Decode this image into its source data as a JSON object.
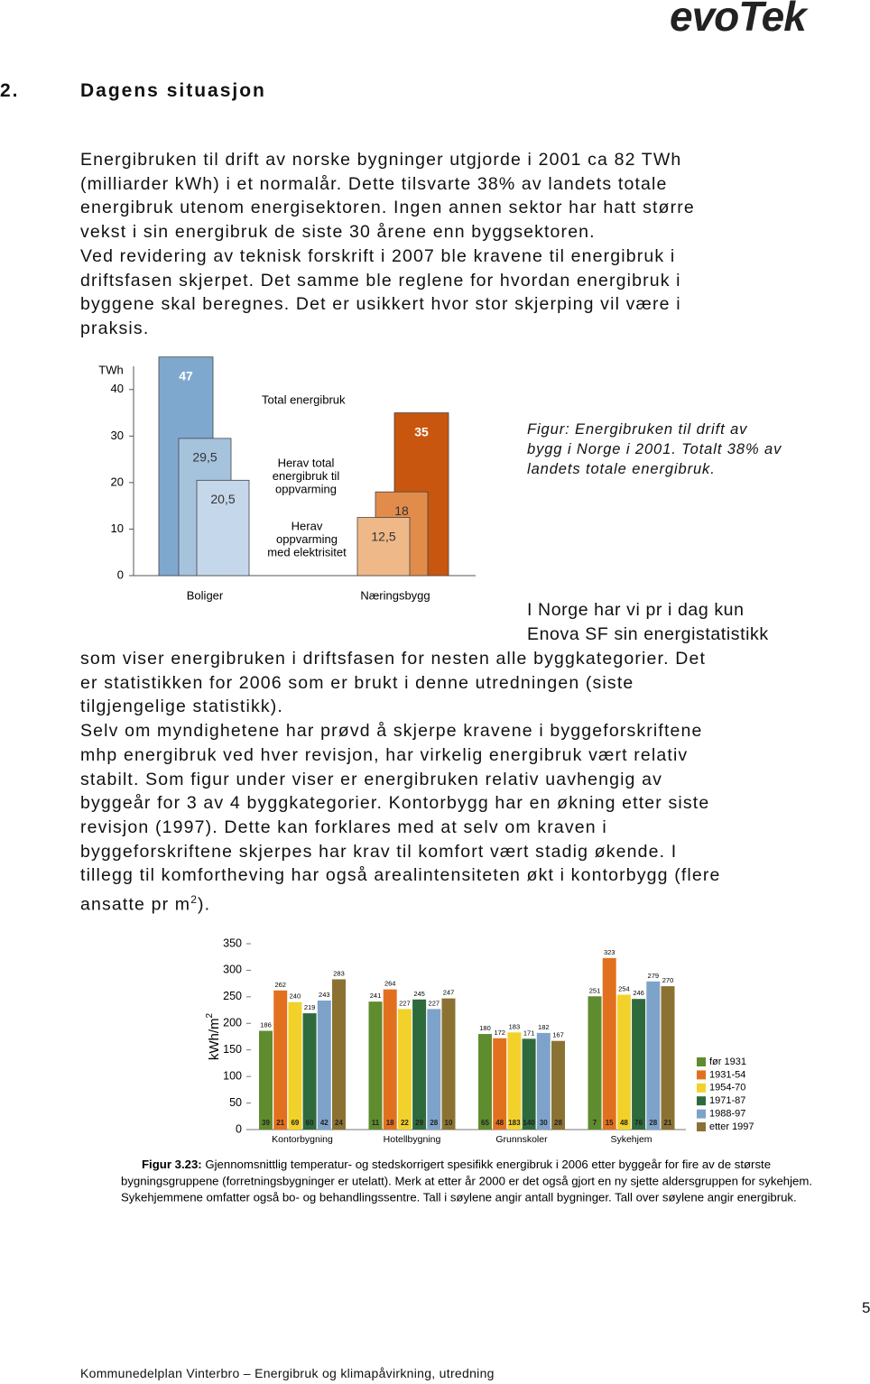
{
  "logo": "evoTek",
  "heading": {
    "number": "2.",
    "title": "Dagens situasjon"
  },
  "paragraph1": [
    "Energibruken til drift av norske bygninger utgjorde i 2001 ca 82 TWh",
    "(milliarder kWh) i et normalår. Dette tilsvarte 38% av landets totale",
    "energibruk utenom energisektoren. Ingen annen sektor har hatt større",
    "vekst i sin energibruk de siste 30 årene enn byggsektoren.",
    "Ved revidering av teknisk forskrift i 2007 ble kravene til energibruk i",
    "driftsfasen skjerpet. Det samme ble reglene for hvordan energibruk i",
    "byggene skal beregnes. Det er usikkert hvor stor skjerping vil være i",
    "praksis."
  ],
  "figure1_caption": [
    "Figur: Energibruken til drift av",
    "bygg i Norge i 2001. Totalt 38% av",
    "landets totale energibruk."
  ],
  "paragraph2_side": [
    "I Norge har vi pr i dag kun",
    "Enova SF sin energistatistikk"
  ],
  "paragraph2": [
    "som viser energibruken i driftsfasen for nesten alle byggkategorier. Det",
    "er statistikken for 2006 som er brukt i denne utredningen (siste",
    "tilgjengelige statistikk).",
    "Selv om myndighetene har prøvd å skjerpe kravene i byggeforskriftene",
    "mhp energibruk ved hver revisjon, har virkelig energibruk vært relativ",
    "stabilt. Som figur under viser er energibruken relativ uavhengig av",
    "byggeår for 3 av 4 byggkategorier. Kontorbygg har en økning etter siste",
    "revisjon (1997). Dette kan forklares med at selv om kraven i",
    "byggeforskriftene skjerpes har krav til komfort vært stadig økende. I",
    "tillegg til komfortheving har også arealintensiteten økt i kontorbygg (flere"
  ],
  "paragraph2_last": {
    "before": "ansatte pr m",
    "sup": "2",
    "after": ")."
  },
  "chart_data": [
    {
      "type": "bar",
      "y_label": "TWh",
      "categories": [
        "Boliger",
        "Næringsbygg"
      ],
      "ylim": [
        0,
        45
      ],
      "yticks": [
        0,
        10,
        20,
        30,
        40
      ],
      "series": [
        {
          "label_lines": [
            "Total energibruk"
          ],
          "colors": [
            "#7fa8cf",
            "#c8560f"
          ],
          "values": [
            47,
            35
          ]
        },
        {
          "label_lines": [
            "Herav total",
            "energibruk til",
            "oppvarming"
          ],
          "colors": [
            "#a6c3de",
            "#e28c4c"
          ],
          "values": [
            29.5,
            18
          ],
          "value_labels": [
            "29,5",
            "18"
          ]
        },
        {
          "label_lines": [
            "Herav",
            "oppvarming",
            "med elektrisitet"
          ],
          "colors": [
            "#c5d7ea",
            "#efb888"
          ],
          "values": [
            20.5,
            12.5
          ],
          "value_labels": [
            "20,5",
            "12,5"
          ]
        }
      ]
    },
    {
      "type": "bar",
      "y_label": "kWh/m",
      "y_label_sup": "2",
      "categories": [
        "Kontorbygning",
        "Hotellbygning",
        "Grunnskoler",
        "Sykehjem"
      ],
      "ylim": [
        0,
        350
      ],
      "yticks": [
        0,
        50,
        100,
        150,
        200,
        250,
        300,
        350
      ],
      "series": [
        {
          "name": "før 1931",
          "color": "#5f8c2e",
          "values": [
            186,
            241,
            180,
            251
          ],
          "counts": [
            39,
            11,
            65,
            7
          ]
        },
        {
          "name": "1931-54",
          "color": "#e2711f",
          "values": [
            262,
            264,
            172,
            323
          ],
          "counts": [
            21,
            18,
            48,
            15
          ]
        },
        {
          "name": "1954-70",
          "color": "#f2d22a",
          "values": [
            240,
            227,
            183,
            254
          ],
          "counts": [
            69,
            22,
            183,
            48
          ]
        },
        {
          "name": "1971-87",
          "color": "#2f6a3c",
          "values": [
            219,
            245,
            171,
            246
          ],
          "counts": [
            60,
            29,
            140,
            76
          ]
        },
        {
          "name": "1988-97",
          "color": "#7ea3cb",
          "values": [
            243,
            227,
            182,
            279
          ],
          "counts": [
            42,
            28,
            30,
            28
          ]
        },
        {
          "name": "etter 1997",
          "color": "#8c7232",
          "values": [
            283,
            247,
            167,
            270
          ],
          "counts": [
            24,
            10,
            28,
            21
          ]
        }
      ],
      "caption_label": "Figur 3.23:",
      "caption_lines": [
        " Gjennomsnittlig temperatur- og stedskorrigert spesifikk energibruk i 2006 etter byggeår for fire av de største",
        "bygningsgruppene (forretningsbygninger er utelatt). Merk at etter år 2000 er det også gjort en ny sjette aldersgruppen for sykehjem.",
        "Sykehjemmene omfatter også bo- og behandlingssentre. Tall i søylene angir antall bygninger. Tall over søylene angir energibruk."
      ]
    }
  ],
  "page_number": "5",
  "footer": "Kommunedelplan Vinterbro – Energibruk og klimapåvirkning, utredning"
}
